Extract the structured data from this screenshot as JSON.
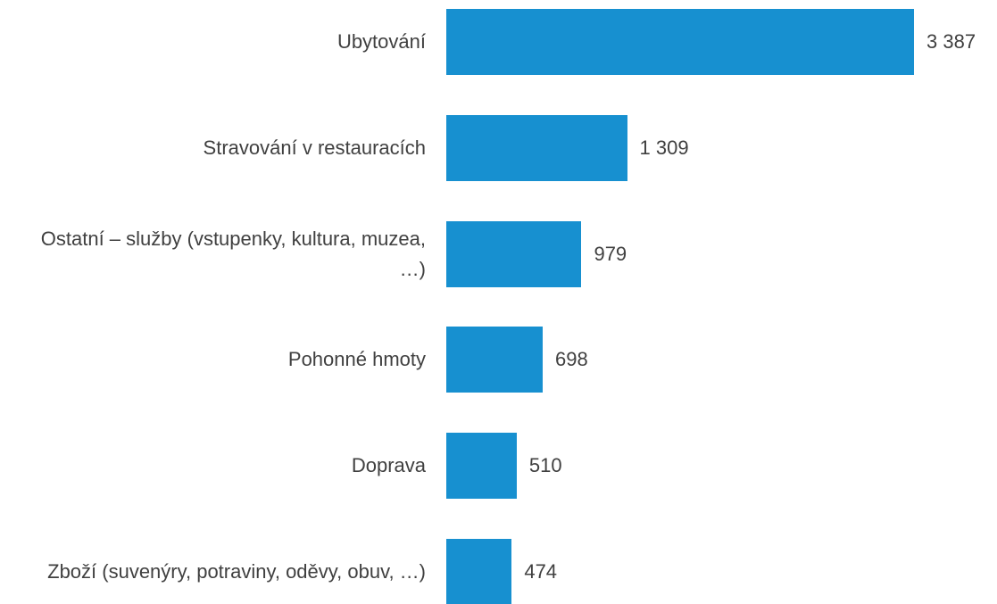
{
  "chart_data": {
    "type": "bar",
    "orientation": "horizontal",
    "categories": [
      "Ubytování",
      "Stravování v restauracích",
      "Ostatní – služby (vstupenky, kultura, muzea, …)",
      "Pohonné hmoty",
      "Doprava",
      "Zboží (suvenýry, potraviny, oděvy, obuv, …)"
    ],
    "values": [
      3387,
      1309,
      979,
      698,
      510,
      474
    ],
    "value_labels": [
      "3 387",
      "1 309",
      "979",
      "698",
      "510",
      "474"
    ],
    "color": "#1790d0"
  }
}
